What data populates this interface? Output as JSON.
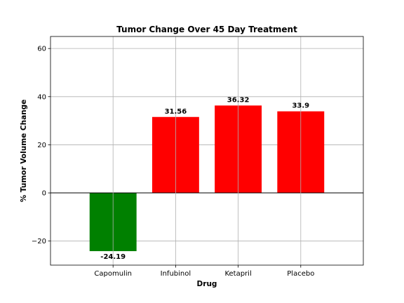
{
  "chart_data": {
    "type": "bar",
    "title": "Tumor Change Over 45 Day Treatment",
    "xlabel": "Drug",
    "ylabel": "% Tumor Volume Change",
    "categories": [
      "Capomulin",
      "Infubinol",
      "Ketapril",
      "Placebo"
    ],
    "values": [
      -24.19,
      31.56,
      36.32,
      33.9
    ],
    "data_labels": [
      "-24.19",
      "31.56",
      "36.32",
      "33.9"
    ],
    "bar_colors": [
      "#008000",
      "#ff0000",
      "#ff0000",
      "#ff0000"
    ],
    "ylim": [
      -30,
      65
    ],
    "xlim": [
      -1,
      4
    ],
    "yticks": [
      -20,
      0,
      20,
      40,
      60
    ],
    "ytick_labels": [
      "−20",
      "0",
      "20",
      "40",
      "60"
    ],
    "grid": true,
    "zero_line": true
  }
}
